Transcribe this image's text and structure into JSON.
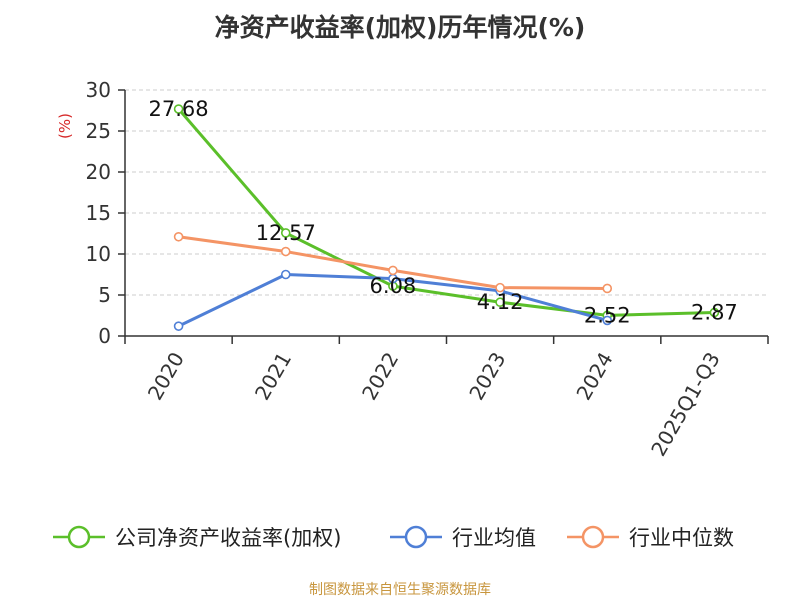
{
  "chart_data": {
    "type": "line",
    "title": "净资产收益率(加权)历年情况(%)",
    "ylabel": "(%)",
    "xlabel": "",
    "categories": [
      "2020",
      "2021",
      "2022",
      "2023",
      "2024",
      "2025Q1-Q3"
    ],
    "ylim": [
      0,
      30
    ],
    "yticks": [
      0,
      5,
      10,
      15,
      20,
      25,
      30
    ],
    "grid": true,
    "legend_position": "bottom",
    "series": [
      {
        "name": "公司净资产收益率(加权)",
        "color": "#5bbf2a",
        "values": [
          27.68,
          12.57,
          6.08,
          4.12,
          2.52,
          2.87
        ],
        "labels": [
          "27.68",
          "12.57",
          "6.08",
          "4.12",
          "2.52",
          "2.87"
        ]
      },
      {
        "name": "行业均值",
        "color": "#4f7fd6",
        "values": [
          1.2,
          7.5,
          7.0,
          5.5,
          1.9,
          null
        ]
      },
      {
        "name": "行业中位数",
        "color": "#f49465",
        "values": [
          12.1,
          10.3,
          8.0,
          5.9,
          5.8,
          null
        ]
      }
    ]
  },
  "source": "制图数据来自恒生聚源数据库",
  "colors": {
    "axis": "#333333",
    "grid": "#cccccc",
    "ylabel": "#d62828",
    "source": "#c8963e"
  }
}
